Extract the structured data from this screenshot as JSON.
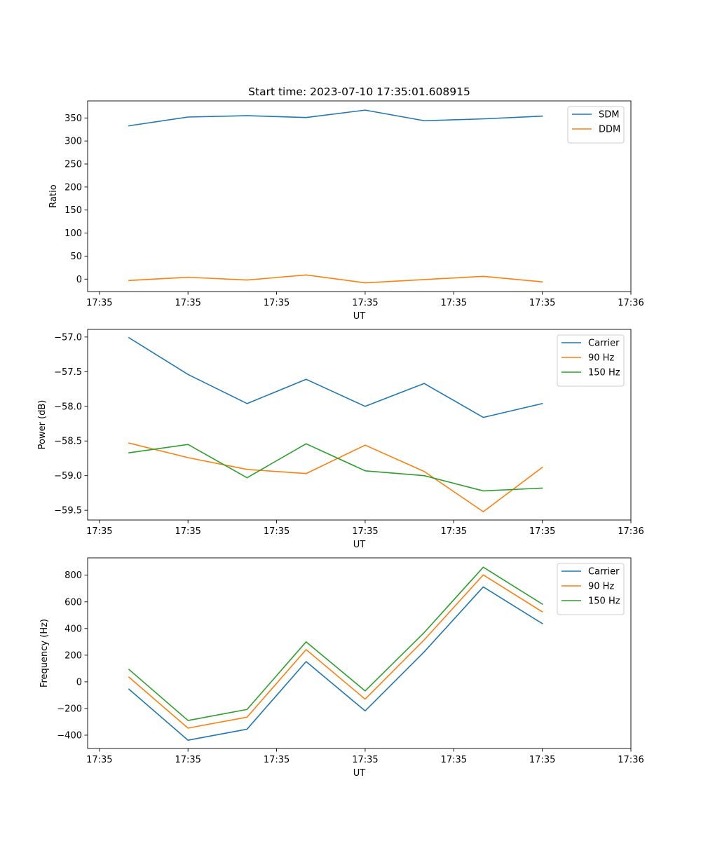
{
  "figure": {
    "title": "Start time: 2023-07-10 17:35:01.608915"
  },
  "chart_data": [
    {
      "type": "line",
      "title": "Start time: 2023-07-10 17:35:01.608915",
      "xlabel": "UT",
      "ylabel": "Ratio",
      "x": [
        1,
        2,
        3,
        4,
        5,
        6,
        7,
        8
      ],
      "xlim": [
        0.3,
        9.5
      ],
      "xticks": [
        0.5,
        2,
        3.5,
        5,
        6.5,
        8,
        9.5
      ],
      "xtick_labels": [
        "17:35",
        "17:35",
        "17:35",
        "17:35",
        "17:35",
        "17:35",
        "17:36"
      ],
      "ylim": [
        -27,
        387
      ],
      "yticks": [
        0,
        50,
        100,
        150,
        200,
        250,
        300,
        350
      ],
      "ytick_labels": [
        "0",
        "50",
        "100",
        "150",
        "200",
        "250",
        "300",
        "350"
      ],
      "legend": "top-right",
      "series": [
        {
          "name": "SDM",
          "color": "#1f77b4",
          "values": [
            333,
            352,
            355,
            351,
            367,
            344,
            348,
            354
          ]
        },
        {
          "name": "DDM",
          "color": "#ff7f0e",
          "values": [
            -3,
            4,
            -2,
            9,
            -8,
            -1,
            6,
            -6
          ]
        }
      ]
    },
    {
      "type": "line",
      "title": "",
      "xlabel": "UT",
      "ylabel": "Power (dB)",
      "x": [
        1,
        2,
        3,
        4,
        5,
        6,
        7,
        8
      ],
      "xlim": [
        0.3,
        9.5
      ],
      "xticks": [
        0.5,
        2,
        3.5,
        5,
        6.5,
        8,
        9.5
      ],
      "xtick_labels": [
        "17:35",
        "17:35",
        "17:35",
        "17:35",
        "17:35",
        "17:35",
        "17:36"
      ],
      "ylim": [
        -59.64,
        -56.89
      ],
      "yticks": [
        -57.0,
        -57.5,
        -58.0,
        -58.5,
        -59.0,
        -59.5
      ],
      "ytick_labels": [
        "−57.0",
        "−57.5",
        "−58.0",
        "−58.5",
        "−59.0",
        "−59.5"
      ],
      "legend": "top-right",
      "series": [
        {
          "name": "Carrier",
          "color": "#1f77b4",
          "values": [
            -57.01,
            -57.54,
            -57.96,
            -57.61,
            -58.0,
            -57.67,
            -58.16,
            -57.96
          ]
        },
        {
          "name": "90 Hz",
          "color": "#ff7f0e",
          "values": [
            -58.53,
            -58.74,
            -58.91,
            -58.97,
            -58.56,
            -58.94,
            -59.52,
            -58.88
          ]
        },
        {
          "name": "150 Hz",
          "color": "#2ca02c",
          "values": [
            -58.67,
            -58.55,
            -59.03,
            -58.54,
            -58.93,
            -59.0,
            -59.22,
            -59.18
          ]
        }
      ]
    },
    {
      "type": "line",
      "title": "",
      "xlabel": "UT",
      "ylabel": "Frequency (Hz)",
      "x": [
        1,
        2,
        3,
        4,
        5,
        6,
        7,
        8
      ],
      "xlim": [
        0.3,
        9.5
      ],
      "xticks": [
        0.5,
        2,
        3.5,
        5,
        6.5,
        8,
        9.5
      ],
      "xtick_labels": [
        "17:35",
        "17:35",
        "17:35",
        "17:35",
        "17:35",
        "17:35",
        "17:36"
      ],
      "ylim": [
        -500,
        930
      ],
      "yticks": [
        -400,
        -200,
        0,
        200,
        400,
        600,
        800
      ],
      "ytick_labels": [
        "−400",
        "−200",
        "0",
        "200",
        "400",
        "600",
        "800"
      ],
      "legend": "top-right",
      "series": [
        {
          "name": "Carrier",
          "color": "#1f77b4",
          "values": [
            -55,
            -438,
            -355,
            152,
            -218,
            225,
            712,
            437
          ]
        },
        {
          "name": "90 Hz",
          "color": "#ff7f0e",
          "values": [
            35,
            -347,
            -265,
            242,
            -130,
            315,
            802,
            525
          ]
        },
        {
          "name": "150 Hz",
          "color": "#2ca02c",
          "values": [
            93,
            -290,
            -207,
            300,
            -68,
            370,
            860,
            583
          ]
        }
      ]
    }
  ]
}
